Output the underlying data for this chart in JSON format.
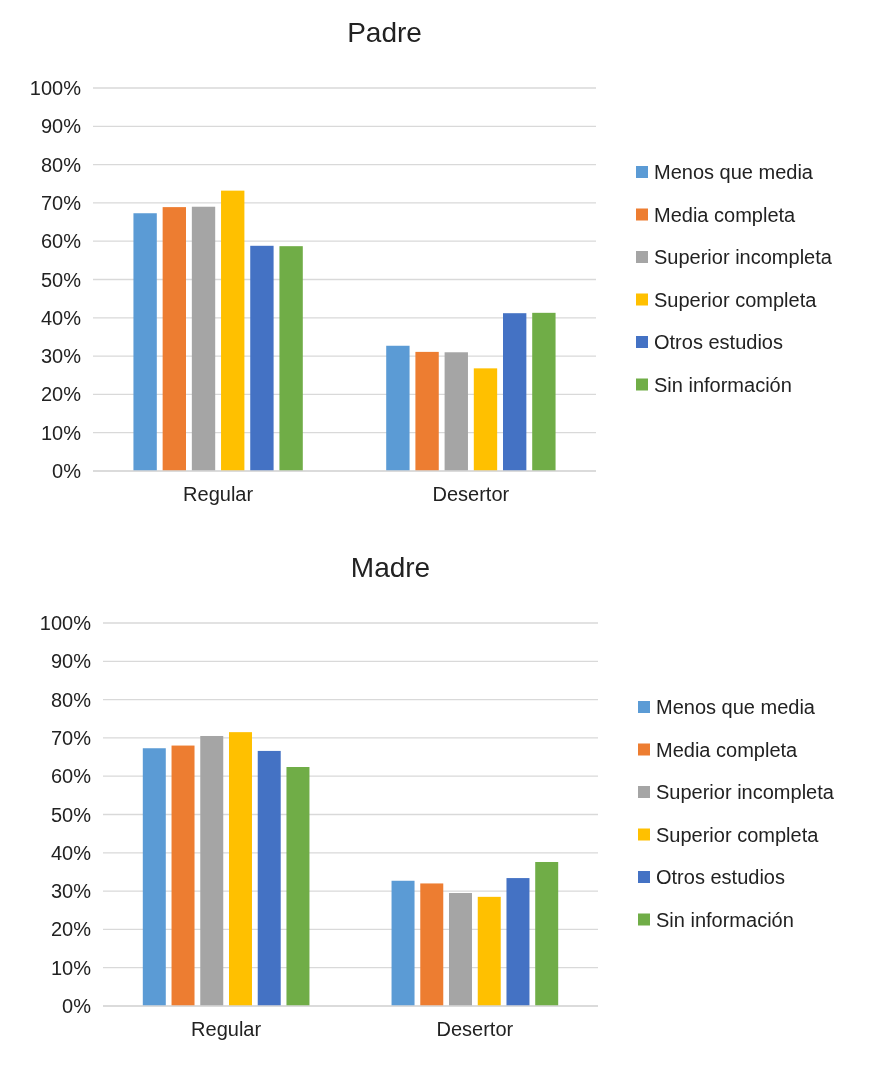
{
  "chart_data": [
    {
      "type": "bar",
      "title": "Padre",
      "categories": [
        "Regular",
        "Desertor"
      ],
      "series": [
        {
          "name": "Menos que media",
          "color": "#5b9bd5",
          "values": [
            67.3,
            32.7
          ]
        },
        {
          "name": "Media completa",
          "color": "#ed7d31",
          "values": [
            68.9,
            31.1
          ]
        },
        {
          "name": "Superior incompleta",
          "color": "#a5a5a5",
          "values": [
            69.0,
            31.0
          ]
        },
        {
          "name": "Superior completa",
          "color": "#ffc000",
          "values": [
            73.2,
            26.8
          ]
        },
        {
          "name": "Otros estudios",
          "color": "#4472c4",
          "values": [
            58.8,
            41.2
          ]
        },
        {
          "name": "Sin información",
          "color": "#70ad47",
          "values": [
            58.7,
            41.3
          ]
        }
      ],
      "ylim": [
        0,
        100
      ],
      "yticks": [
        {
          "value": 0,
          "label": "0%"
        },
        {
          "value": 10,
          "label": "10%"
        },
        {
          "value": 20,
          "label": "20%"
        },
        {
          "value": 30,
          "label": "30%"
        },
        {
          "value": 40,
          "label": "40%"
        },
        {
          "value": 50,
          "label": "50%"
        },
        {
          "value": 60,
          "label": "60%"
        },
        {
          "value": 70,
          "label": "70%"
        },
        {
          "value": 80,
          "label": "80%"
        },
        {
          "value": 90,
          "label": "90%"
        },
        {
          "value": 100,
          "label": "100%"
        }
      ],
      "grid": "y",
      "legend": "right"
    },
    {
      "type": "bar",
      "title": "Madre",
      "categories": [
        "Regular",
        "Desertor"
      ],
      "series": [
        {
          "name": "Menos que media",
          "color": "#5b9bd5",
          "values": [
            67.3,
            32.7
          ]
        },
        {
          "name": "Media completa",
          "color": "#ed7d31",
          "values": [
            68.0,
            32.0
          ]
        },
        {
          "name": "Superior incompleta",
          "color": "#a5a5a5",
          "values": [
            70.5,
            29.5
          ]
        },
        {
          "name": "Superior completa",
          "color": "#ffc000",
          "values": [
            71.5,
            28.5
          ]
        },
        {
          "name": "Otros estudios",
          "color": "#4472c4",
          "values": [
            66.6,
            33.4
          ]
        },
        {
          "name": "Sin información",
          "color": "#70ad47",
          "values": [
            62.4,
            37.6
          ]
        }
      ],
      "ylim": [
        0,
        100
      ],
      "yticks": [
        {
          "value": 0,
          "label": "0%"
        },
        {
          "value": 10,
          "label": "10%"
        },
        {
          "value": 20,
          "label": "20%"
        },
        {
          "value": 30,
          "label": "30%"
        },
        {
          "value": 40,
          "label": "40%"
        },
        {
          "value": 50,
          "label": "50%"
        },
        {
          "value": 60,
          "label": "60%"
        },
        {
          "value": 70,
          "label": "70%"
        },
        {
          "value": 80,
          "label": "80%"
        },
        {
          "value": 90,
          "label": "90%"
        },
        {
          "value": 100,
          "label": "100%"
        }
      ],
      "grid": "y",
      "legend": "right"
    }
  ]
}
